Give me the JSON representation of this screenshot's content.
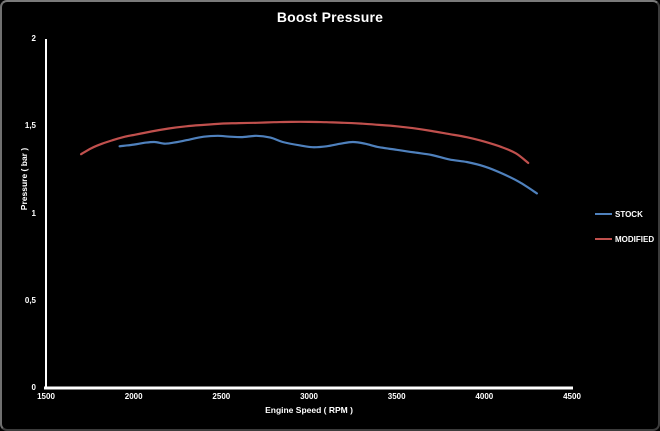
{
  "chart_data": {
    "type": "line",
    "title": "Boost Pressure",
    "xlabel": "Engine Speed ( RPM )",
    "ylabel": "Pressure ( bar )",
    "xlim": [
      1500,
      4500
    ],
    "ylim": [
      0,
      2
    ],
    "x_ticks": [
      "1500",
      "2000",
      "2500",
      "3000",
      "3500",
      "4000",
      "4500"
    ],
    "y_ticks": [
      "0",
      "0,5",
      "1",
      "1,5",
      "2"
    ],
    "grid": false,
    "background_color": "#000000",
    "axis_color": "#ffffff",
    "text_color": "#ffffff",
    "legend_position": "right",
    "series": [
      {
        "name": "STOCK",
        "color": "#4f81bd",
        "points": [
          [
            1920,
            1.385
          ],
          [
            2000,
            1.395
          ],
          [
            2060,
            1.405
          ],
          [
            2120,
            1.41
          ],
          [
            2180,
            1.4
          ],
          [
            2250,
            1.41
          ],
          [
            2300,
            1.42
          ],
          [
            2400,
            1.44
          ],
          [
            2480,
            1.445
          ],
          [
            2550,
            1.44
          ],
          [
            2620,
            1.438
          ],
          [
            2700,
            1.445
          ],
          [
            2780,
            1.435
          ],
          [
            2850,
            1.41
          ],
          [
            2950,
            1.39
          ],
          [
            3020,
            1.38
          ],
          [
            3100,
            1.385
          ],
          [
            3180,
            1.4
          ],
          [
            3250,
            1.41
          ],
          [
            3320,
            1.4
          ],
          [
            3400,
            1.38
          ],
          [
            3500,
            1.365
          ],
          [
            3600,
            1.35
          ],
          [
            3700,
            1.335
          ],
          [
            3800,
            1.31
          ],
          [
            3900,
            1.295
          ],
          [
            4000,
            1.27
          ],
          [
            4100,
            1.23
          ],
          [
            4200,
            1.18
          ],
          [
            4300,
            1.115
          ]
        ]
      },
      {
        "name": "MODIFIED",
        "color": "#c0504d",
        "points": [
          [
            1700,
            1.34
          ],
          [
            1760,
            1.375
          ],
          [
            1820,
            1.4
          ],
          [
            1880,
            1.42
          ],
          [
            1950,
            1.44
          ],
          [
            2000,
            1.45
          ],
          [
            2100,
            1.47
          ],
          [
            2200,
            1.487
          ],
          [
            2300,
            1.5
          ],
          [
            2400,
            1.508
          ],
          [
            2500,
            1.515
          ],
          [
            2600,
            1.518
          ],
          [
            2700,
            1.52
          ],
          [
            2800,
            1.523
          ],
          [
            2900,
            1.525
          ],
          [
            3000,
            1.525
          ],
          [
            3100,
            1.523
          ],
          [
            3200,
            1.52
          ],
          [
            3300,
            1.515
          ],
          [
            3400,
            1.508
          ],
          [
            3500,
            1.5
          ],
          [
            3600,
            1.488
          ],
          [
            3700,
            1.473
          ],
          [
            3800,
            1.455
          ],
          [
            3900,
            1.437
          ],
          [
            4000,
            1.412
          ],
          [
            4100,
            1.38
          ],
          [
            4180,
            1.345
          ],
          [
            4250,
            1.29
          ]
        ]
      }
    ]
  }
}
